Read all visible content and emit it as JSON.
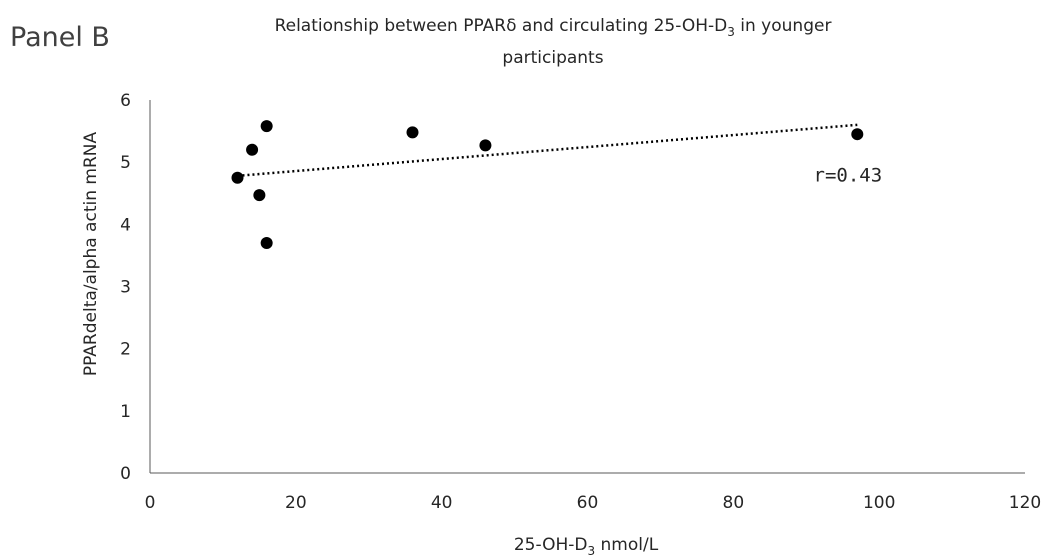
{
  "panel_label": "Panel B",
  "chart_data": {
    "type": "scatter",
    "title_parts": {
      "line1_pre": "Relationship between PPARδ and circulating 25-OH-D",
      "line1_sub": "3",
      "line1_post": " in younger",
      "line2": "participants"
    },
    "xlabel_parts": {
      "pre": "25-OH-D",
      "sub": "3",
      "post": " nmol/L"
    },
    "ylabel": "PPARdelta/alpha actin mRNA",
    "xlim": [
      0,
      120
    ],
    "ylim": [
      0,
      6
    ],
    "x_ticks": [
      0,
      20,
      40,
      60,
      80,
      100,
      120
    ],
    "y_ticks": [
      0,
      1,
      2,
      3,
      4,
      5,
      6
    ],
    "x_tick_labels": [
      "0",
      "20",
      "40",
      "60",
      "80",
      "100",
      "120"
    ],
    "y_tick_labels": [
      "0",
      "1",
      "2",
      "3",
      "4",
      "5",
      "6"
    ],
    "grid": false,
    "legend": "none",
    "points": [
      {
        "x": 12,
        "y": 4.75
      },
      {
        "x": 14,
        "y": 5.2
      },
      {
        "x": 15,
        "y": 4.47
      },
      {
        "x": 16,
        "y": 5.58
      },
      {
        "x": 16,
        "y": 3.7
      },
      {
        "x": 36,
        "y": 5.48
      },
      {
        "x": 46,
        "y": 5.27
      },
      {
        "x": 97,
        "y": 5.45
      }
    ],
    "trendline": {
      "style": "dotted",
      "x": [
        12,
        97
      ],
      "y": [
        4.78,
        5.6
      ]
    },
    "annotation": {
      "text": "r=0.43",
      "x": 91,
      "y": 4.8
    },
    "marker_color": "#000000",
    "axis_color": "#595959"
  }
}
